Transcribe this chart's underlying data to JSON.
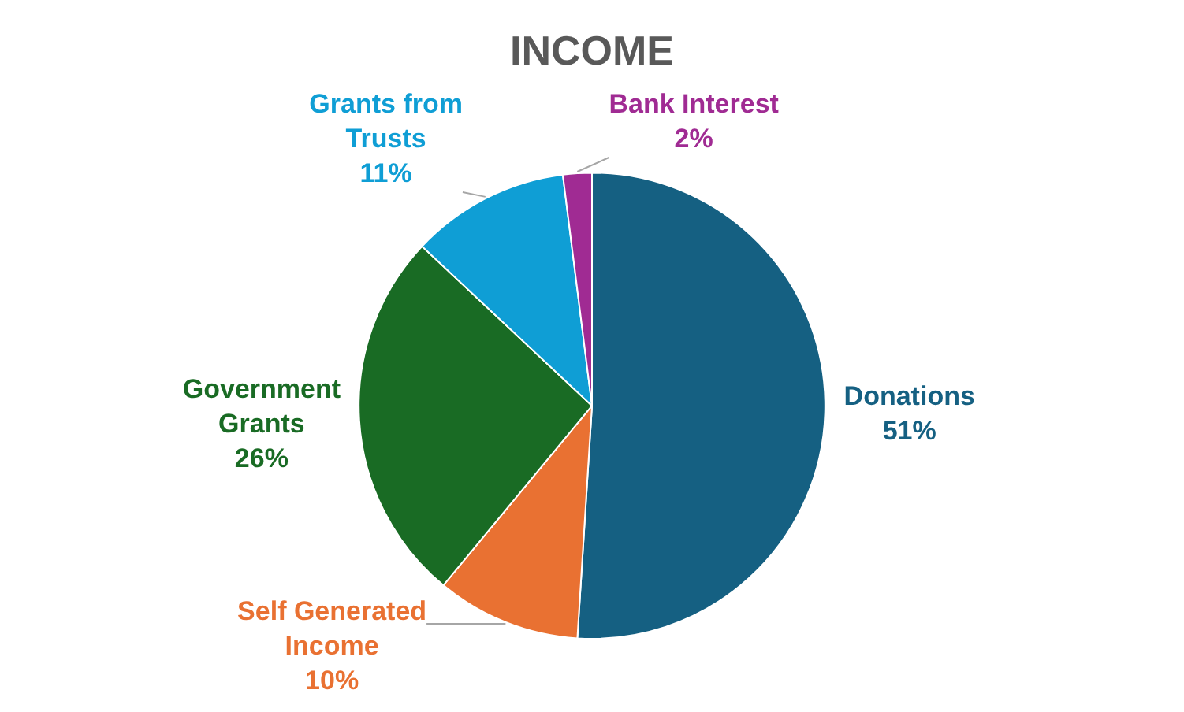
{
  "chart_data": {
    "type": "pie",
    "title": "INCOME",
    "categories": [
      "Donations",
      "Self Generated Income",
      "Government Grants",
      "Grants from Trusts",
      "Bank Interest"
    ],
    "values": [
      51,
      10,
      26,
      11,
      2
    ],
    "value_labels": [
      "51%",
      "10%",
      "26%",
      "11%",
      "2%"
    ],
    "colors": [
      "#156082",
      "#e97132",
      "#196b24",
      "#0f9ed5",
      "#a02b93"
    ],
    "legend": false
  }
}
